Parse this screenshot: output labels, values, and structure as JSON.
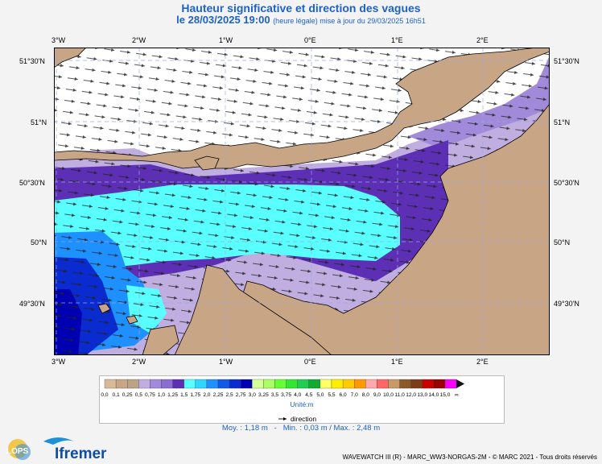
{
  "header": {
    "title": "Hauteur significative et direction des vagues",
    "date": "le 28/03/2025 19:00",
    "subtitle": "(heure légale) mise à jour du 29/03/2025 16h51"
  },
  "axes": {
    "lon_labels": [
      "3°W",
      "2°W",
      "1°W",
      "0°E",
      "1°E",
      "2°E"
    ],
    "lat_labels": [
      "51°30'N",
      "51°N",
      "50°30'N",
      "50°N",
      "49°30'N"
    ]
  },
  "legend": {
    "colors": [
      "#d9b998",
      "#c7a585",
      "#bba486",
      "#c0aee0",
      "#a08ad9",
      "#8a6fd1",
      "#5c2fb5",
      "#59ffff",
      "#30d5ff",
      "#1e90ff",
      "#1259e6",
      "#0a2bd0",
      "#0000b2",
      "#d6ff9a",
      "#aaff66",
      "#66ff33",
      "#33e633",
      "#22cc55",
      "#11aa33",
      "#ffff66",
      "#ffee00",
      "#ffcc00",
      "#ff9900",
      "#ffaaaa",
      "#ff6666",
      "#c89a6a",
      "#8b5a2b",
      "#7a3f1a",
      "#cc0000",
      "#990000",
      "#ff00ff",
      "#aa00aa",
      "#660066"
    ],
    "labels": [
      "0,0",
      "0,1",
      "0,25",
      "0,5",
      "0,75",
      "1,0",
      "1,25",
      "1,5",
      "1,75",
      "2,0",
      "2,25",
      "2,5",
      "2,75",
      "3,0",
      "3,25",
      "3,5",
      "3,75",
      "4,0",
      "4,5",
      "5,0",
      "5,5",
      "6,0",
      "7,0",
      "8,0",
      "9,0",
      "10,0",
      "11,0",
      "12,0",
      "13,0",
      "14,0",
      "15,0",
      "∞"
    ],
    "unit": "Unité:m",
    "direction_label": "direction"
  },
  "stats": {
    "moy": "Moy. : 1,18 m",
    "min": "Min. : 0,03 m / Max. : 2,48 m"
  },
  "footer": "WAVEWATCH III (R) - MARC_WW3-NORGAS-2M - © MARC 2021 - Tous droits réservés",
  "logos": {
    "lops": "LOPS",
    "ifremer": "Ifremer"
  }
}
